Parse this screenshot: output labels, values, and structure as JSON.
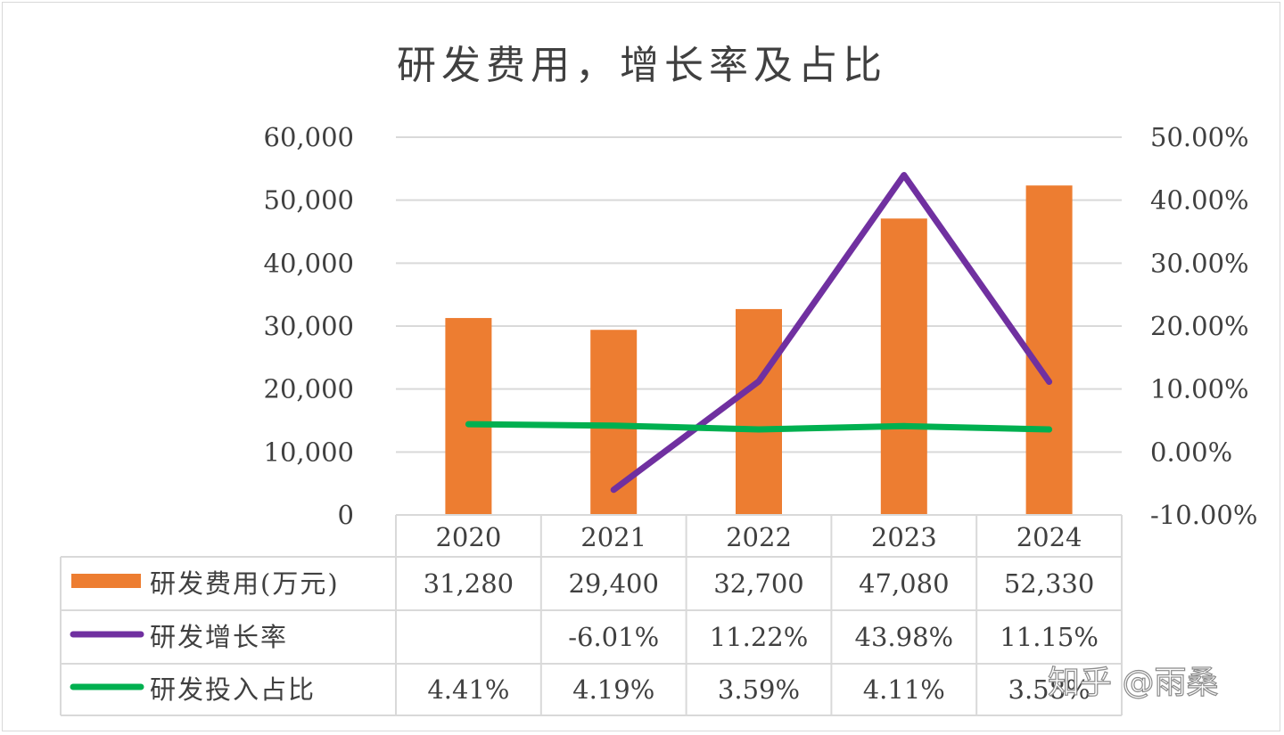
{
  "chart_data": {
    "type": "bar",
    "title": "研发费用，增长率及占比",
    "categories": [
      "2020",
      "2021",
      "2022",
      "2023",
      "2024"
    ],
    "y_left": {
      "range": [
        0,
        60000
      ],
      "ticks": [
        "0",
        "10,000",
        "20,000",
        "30,000",
        "40,000",
        "50,000",
        "60,000"
      ]
    },
    "y_right": {
      "range": [
        -0.1,
        0.5
      ],
      "ticks": [
        "-10.00%",
        "0.00%",
        "10.00%",
        "20.00%",
        "30.00%",
        "40.00%",
        "50.00%"
      ]
    },
    "grid": true,
    "series": [
      {
        "name": "研发费用(万元)",
        "type": "bar",
        "axis": "left",
        "color": "#ed7d31",
        "values": [
          31280,
          29400,
          32700,
          47080,
          52330
        ],
        "labels": [
          "31,280",
          "29,400",
          "32,700",
          "47,080",
          "52,330"
        ]
      },
      {
        "name": "研发增长率",
        "type": "line",
        "axis": "right",
        "color": "#7030a0",
        "values": [
          null,
          -0.0601,
          0.1122,
          0.4398,
          0.1115
        ],
        "labels": [
          "",
          "-6.01%",
          "11.22%",
          "43.98%",
          "11.15%"
        ]
      },
      {
        "name": "研发投入占比",
        "type": "line",
        "axis": "right",
        "color": "#00b050",
        "values": [
          0.0441,
          0.0419,
          0.0359,
          0.0411,
          0.0358
        ],
        "labels": [
          "4.41%",
          "4.19%",
          "3.59%",
          "4.11%",
          "3.58%"
        ]
      }
    ]
  },
  "watermark": "知乎 @雨桑"
}
